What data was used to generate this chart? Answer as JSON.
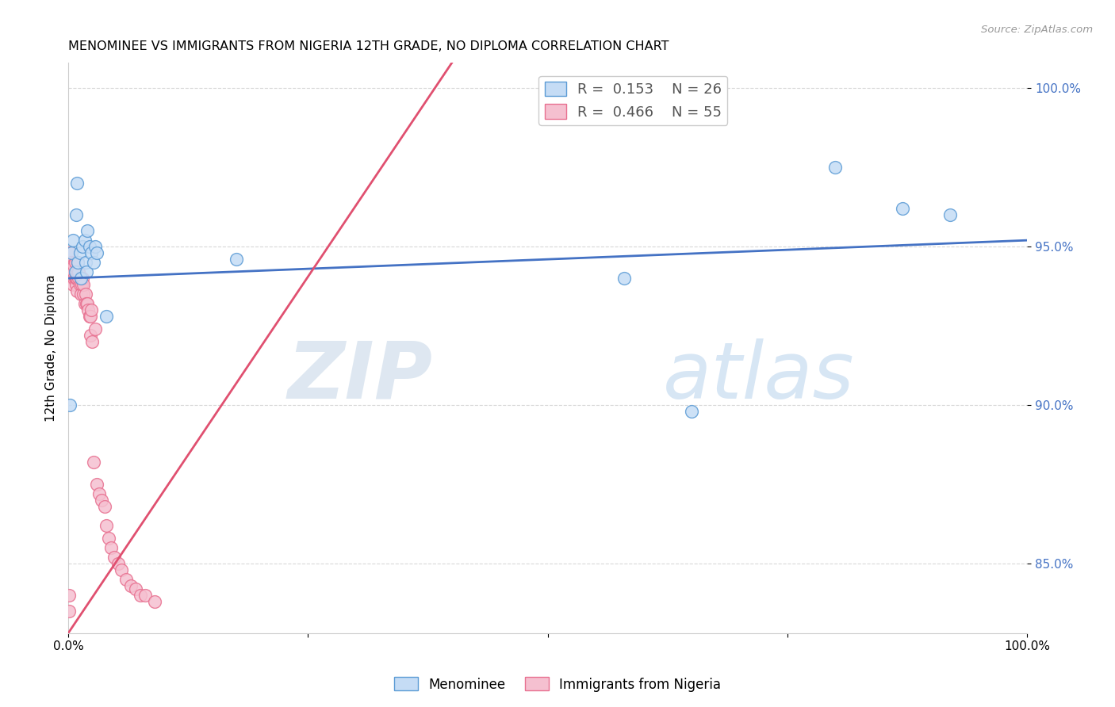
{
  "title": "MENOMINEE VS IMMIGRANTS FROM NIGERIA 12TH GRADE, NO DIPLOMA CORRELATION CHART",
  "source": "Source: ZipAtlas.com",
  "ylabel": "12th Grade, No Diploma",
  "xlabel": "",
  "watermark_zip": "ZIP",
  "watermark_atlas": "atlas",
  "legend_blue_r": "0.153",
  "legend_blue_n": "26",
  "legend_pink_r": "0.466",
  "legend_pink_n": "55",
  "xlim": [
    0,
    1.0
  ],
  "ylim": [
    0.828,
    1.008
  ],
  "yticks": [
    0.85,
    0.9,
    0.95,
    1.0
  ],
  "ytick_labels": [
    "85.0%",
    "90.0%",
    "95.0%",
    "100.0%"
  ],
  "xticks": [
    0,
    0.25,
    0.5,
    0.75,
    1.0
  ],
  "xtick_labels": [
    "0.0%",
    "",
    "",
    "",
    "100.0%"
  ],
  "blue_color": "#c5dcf5",
  "blue_edge_color": "#5b9bd5",
  "pink_color": "#f5c0d0",
  "pink_edge_color": "#e87090",
  "trend_blue": "#4472c4",
  "trend_pink": "#e05070",
  "background": "#ffffff",
  "grid_color": "#d8d8d8",
  "blue_x": [
    0.002,
    0.003,
    0.005,
    0.007,
    0.008,
    0.009,
    0.01,
    0.012,
    0.013,
    0.015,
    0.017,
    0.018,
    0.019,
    0.02,
    0.022,
    0.024,
    0.026,
    0.028,
    0.03,
    0.04,
    0.175,
    0.58,
    0.65,
    0.8,
    0.87,
    0.92
  ],
  "blue_y": [
    0.9,
    0.948,
    0.952,
    0.942,
    0.96,
    0.97,
    0.945,
    0.948,
    0.94,
    0.95,
    0.952,
    0.945,
    0.942,
    0.955,
    0.95,
    0.948,
    0.945,
    0.95,
    0.948,
    0.928,
    0.946,
    0.94,
    0.898,
    0.975,
    0.962,
    0.96
  ],
  "pink_x": [
    0.001,
    0.001,
    0.002,
    0.003,
    0.003,
    0.004,
    0.004,
    0.005,
    0.005,
    0.006,
    0.006,
    0.007,
    0.007,
    0.008,
    0.008,
    0.009,
    0.009,
    0.01,
    0.01,
    0.011,
    0.011,
    0.012,
    0.013,
    0.014,
    0.015,
    0.016,
    0.016,
    0.017,
    0.018,
    0.019,
    0.02,
    0.021,
    0.022,
    0.023,
    0.023,
    0.024,
    0.025,
    0.026,
    0.028,
    0.03,
    0.032,
    0.035,
    0.038,
    0.04,
    0.042,
    0.045,
    0.048,
    0.052,
    0.055,
    0.06,
    0.065,
    0.07,
    0.075,
    0.08,
    0.09
  ],
  "pink_y": [
    0.84,
    0.835,
    0.948,
    0.942,
    0.945,
    0.94,
    0.944,
    0.942,
    0.938,
    0.944,
    0.94,
    0.945,
    0.94,
    0.938,
    0.94,
    0.94,
    0.936,
    0.942,
    0.945,
    0.94,
    0.942,
    0.938,
    0.935,
    0.938,
    0.94,
    0.935,
    0.938,
    0.932,
    0.935,
    0.932,
    0.932,
    0.93,
    0.928,
    0.922,
    0.928,
    0.93,
    0.92,
    0.882,
    0.924,
    0.875,
    0.872,
    0.87,
    0.868,
    0.862,
    0.858,
    0.855,
    0.852,
    0.85,
    0.848,
    0.845,
    0.843,
    0.842,
    0.84,
    0.84,
    0.838
  ],
  "trend_blue_x0": 0.0,
  "trend_blue_x1": 1.0,
  "trend_blue_y0": 0.94,
  "trend_blue_y1": 0.952,
  "trend_pink_x0": 0.0,
  "trend_pink_x1": 0.4,
  "trend_pink_y0": 0.828,
  "trend_pink_y1": 1.008
}
